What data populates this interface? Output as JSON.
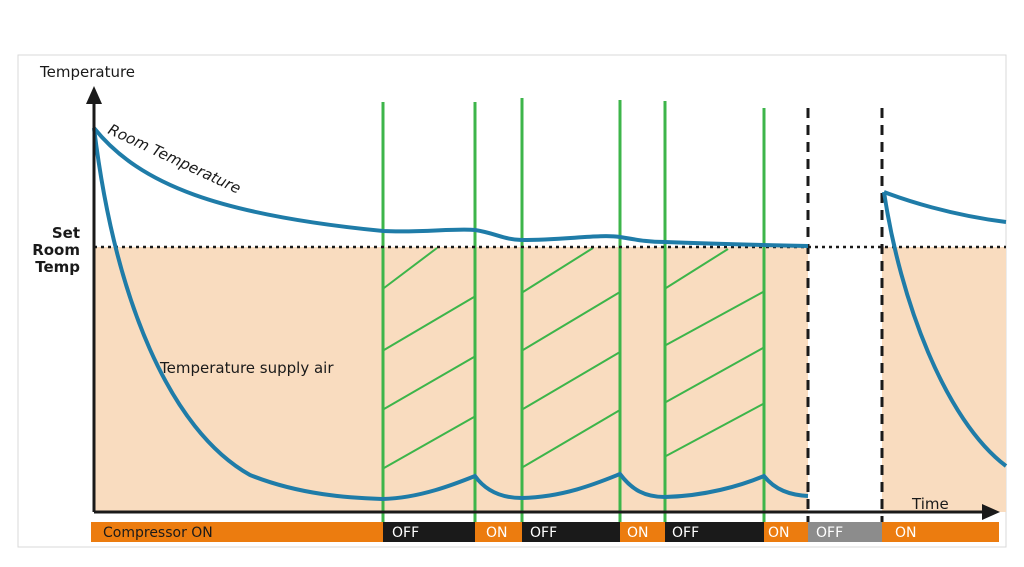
{
  "labels": {
    "y_axis": "Temperature",
    "x_axis": "Time",
    "set_temp_line1": "Set",
    "set_temp_line2": "Room",
    "set_temp_line3": "Temp",
    "room_temperature": "Room Temperature",
    "supply_air": "Temperature supply air"
  },
  "compressor_bar": [
    {
      "label": "Compressor ON",
      "state": "on"
    },
    {
      "label": "OFF",
      "state": "off"
    },
    {
      "label": "ON",
      "state": "on"
    },
    {
      "label": "OFF",
      "state": "off"
    },
    {
      "label": "ON",
      "state": "on"
    },
    {
      "label": "OFF",
      "state": "off"
    },
    {
      "label": "ON",
      "state": "on"
    },
    {
      "label": "OFF",
      "state": "fan-off"
    },
    {
      "label": "ON",
      "state": "on"
    }
  ],
  "colors": {
    "area_fill": "#f9dcbf",
    "curve": "#1f7ca8",
    "green": "#3db54a",
    "on": "#ec7c0f",
    "off": "#1a1a1a",
    "fan_off": "#8c8c8c",
    "bar_text": "#ffffff",
    "compressor_on_text": "#1a1a1a"
  }
}
